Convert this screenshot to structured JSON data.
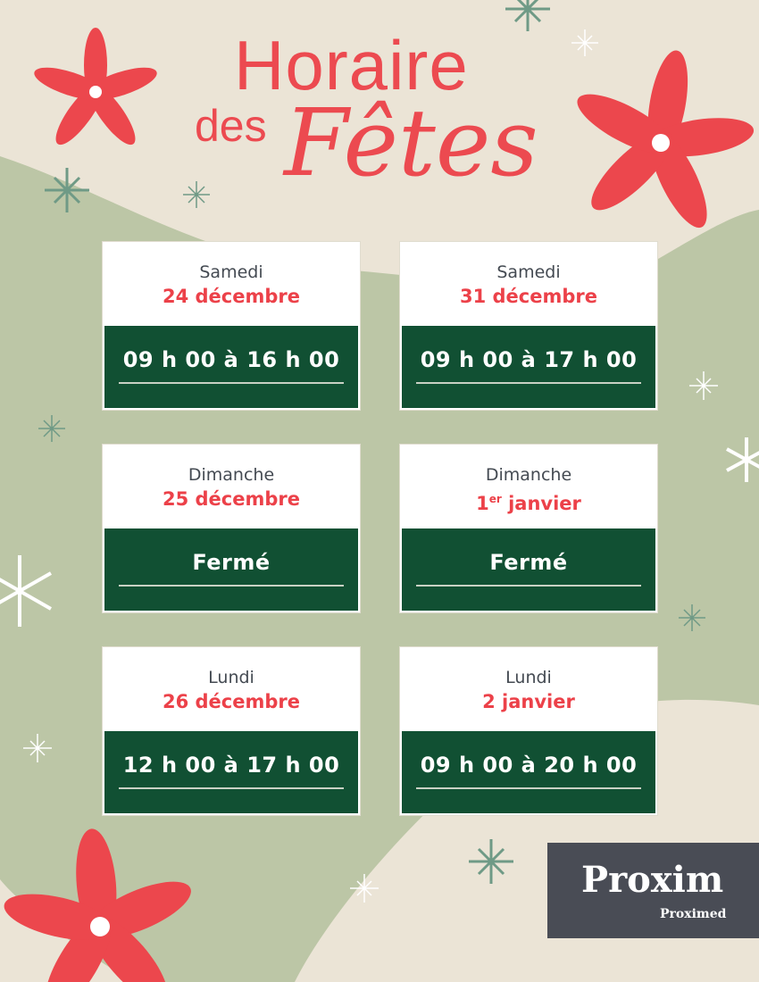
{
  "title": {
    "line1": "Horaire",
    "line2": "des",
    "line3": "Fêtes"
  },
  "colors": {
    "background": "#ebe4d6",
    "green_shape": "#bcc6a6",
    "accent_red": "#ec4a50",
    "card_green": "#115033",
    "logo_bg": "#494c55",
    "logo_green": "#8cc63f"
  },
  "schedule": [
    {
      "day": "Samedi",
      "date": "24 décembre",
      "date_sup": "",
      "hours": "09 h 00 à 16 h 00"
    },
    {
      "day": "Samedi",
      "date": "31 décembre",
      "date_sup": "",
      "hours": "09 h 00 à 17 h 00"
    },
    {
      "day": "Dimanche",
      "date": "25 décembre",
      "date_sup": "",
      "hours": "Fermé"
    },
    {
      "day": "Dimanche",
      "date_num": "1",
      "date_sup": "er",
      "date": " janvier",
      "hours": "Fermé"
    },
    {
      "day": "Lundi",
      "date": "26 décembre",
      "date_sup": "",
      "hours": "12 h 00 à 17 h 00"
    },
    {
      "day": "Lundi",
      "date": "2 janvier",
      "date_sup": "",
      "hours": "09 h 00 à 20 h 00"
    }
  ],
  "logo": {
    "brand": "Proxim",
    "sub_brand": "Proximed"
  }
}
